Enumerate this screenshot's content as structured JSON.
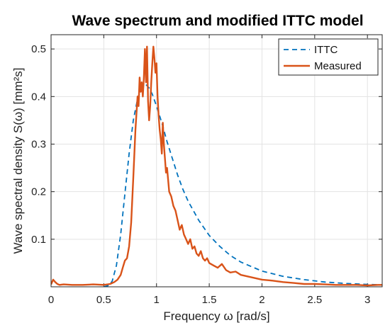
{
  "chart_data": {
    "type": "line",
    "title": "Wave spectrum and modified ITTC model",
    "xlabel": "Frequency ω [rad/s]",
    "ylabel": "Wave spectral density S(ω) [mm²s]",
    "xlim": [
      0,
      3.14
    ],
    "ylim": [
      0,
      0.53
    ],
    "xticks": [
      0,
      0.5,
      1,
      1.5,
      2,
      2.5,
      3
    ],
    "xtick_labels": [
      "0",
      "0.5",
      "1",
      "1.5",
      "2",
      "2.5",
      "3"
    ],
    "yticks": [
      0.1,
      0.2,
      0.3,
      0.4,
      0.5
    ],
    "ytick_labels": [
      "0.1",
      "0.2",
      "0.3",
      "0.4",
      "0.5"
    ],
    "grid": true,
    "legend_position": "top-right",
    "series": [
      {
        "name": "ITTC",
        "style": "dashed",
        "color": "#0072BD",
        "x": [
          0.5,
          0.55,
          0.58,
          0.62,
          0.66,
          0.7,
          0.74,
          0.78,
          0.82,
          0.86,
          0.9,
          0.93,
          0.96,
          1.0,
          1.05,
          1.1,
          1.15,
          1.2,
          1.25,
          1.3,
          1.4,
          1.5,
          1.6,
          1.7,
          1.8,
          2.0,
          2.2,
          2.4,
          2.6,
          2.8,
          3.0,
          3.14
        ],
        "y": [
          0.0,
          0.003,
          0.012,
          0.045,
          0.11,
          0.195,
          0.28,
          0.35,
          0.395,
          0.42,
          0.425,
          0.418,
          0.405,
          0.38,
          0.345,
          0.305,
          0.27,
          0.235,
          0.205,
          0.18,
          0.14,
          0.108,
          0.085,
          0.066,
          0.052,
          0.033,
          0.022,
          0.015,
          0.01,
          0.007,
          0.005,
          0.004
        ]
      },
      {
        "name": "Measured",
        "style": "solid",
        "color": "#D95319",
        "x": [
          0.0,
          0.02,
          0.04,
          0.06,
          0.08,
          0.12,
          0.2,
          0.3,
          0.4,
          0.5,
          0.56,
          0.6,
          0.63,
          0.66,
          0.68,
          0.7,
          0.72,
          0.74,
          0.76,
          0.78,
          0.8,
          0.82,
          0.83,
          0.84,
          0.85,
          0.86,
          0.87,
          0.88,
          0.89,
          0.9,
          0.91,
          0.92,
          0.93,
          0.94,
          0.95,
          0.96,
          0.97,
          0.98,
          0.99,
          1.0,
          1.01,
          1.02,
          1.03,
          1.04,
          1.05,
          1.06,
          1.07,
          1.08,
          1.09,
          1.1,
          1.12,
          1.14,
          1.16,
          1.18,
          1.2,
          1.22,
          1.24,
          1.26,
          1.28,
          1.3,
          1.32,
          1.34,
          1.36,
          1.38,
          1.4,
          1.42,
          1.44,
          1.46,
          1.48,
          1.5,
          1.54,
          1.58,
          1.62,
          1.66,
          1.7,
          1.75,
          1.8,
          1.9,
          2.0,
          2.1,
          2.2,
          2.3,
          2.4,
          2.5,
          2.6,
          2.7,
          2.8,
          2.9,
          3.0,
          3.1,
          3.14
        ],
        "y": [
          0.005,
          0.015,
          0.01,
          0.006,
          0.004,
          0.005,
          0.004,
          0.004,
          0.005,
          0.004,
          0.006,
          0.01,
          0.015,
          0.025,
          0.04,
          0.055,
          0.06,
          0.085,
          0.135,
          0.23,
          0.33,
          0.4,
          0.38,
          0.44,
          0.41,
          0.43,
          0.4,
          0.44,
          0.5,
          0.43,
          0.505,
          0.39,
          0.35,
          0.38,
          0.43,
          0.47,
          0.505,
          0.48,
          0.45,
          0.47,
          0.4,
          0.36,
          0.33,
          0.31,
          0.28,
          0.345,
          0.3,
          0.27,
          0.24,
          0.25,
          0.2,
          0.19,
          0.17,
          0.16,
          0.14,
          0.12,
          0.13,
          0.11,
          0.1,
          0.09,
          0.1,
          0.08,
          0.085,
          0.07,
          0.065,
          0.075,
          0.06,
          0.055,
          0.06,
          0.05,
          0.045,
          0.04,
          0.048,
          0.035,
          0.03,
          0.032,
          0.025,
          0.02,
          0.015,
          0.013,
          0.01,
          0.008,
          0.006,
          0.006,
          0.005,
          0.004,
          0.004,
          0.004,
          0.003,
          0.004,
          0.004
        ]
      }
    ]
  }
}
